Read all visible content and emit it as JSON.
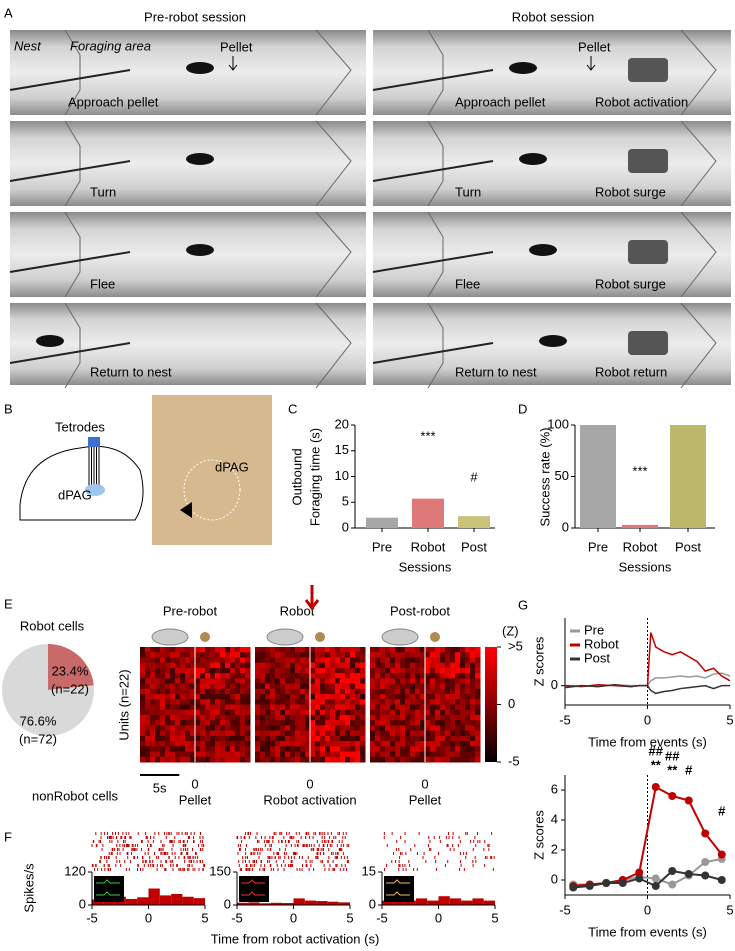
{
  "panel_a": {
    "label": "A",
    "titles": [
      "Pre-robot session",
      "Robot session"
    ],
    "nest": "Nest",
    "foraging_area": "Foraging area",
    "pellet": "Pellet",
    "left_captions": [
      "Approach pellet",
      "Turn",
      "Flee",
      "Return to nest"
    ],
    "right_captions": [
      "Approach pellet",
      "Turn",
      "Flee",
      "Return to nest"
    ],
    "robot_captions": [
      "Robot activation",
      "Robot surge",
      "Robot surge",
      "Robot return"
    ]
  },
  "panel_b": {
    "label": "B",
    "tetrodes": "Tetrodes",
    "region": "dPAG"
  },
  "panel_c": {
    "label": "C",
    "type": "bar",
    "y_label": [
      "Outbound",
      "Foraging time (s)"
    ],
    "x_label": "Sessions",
    "categories": [
      "Pre",
      "Robot",
      "Post"
    ],
    "values": [
      2,
      5.7,
      2.3
    ],
    "colors": [
      "#a6a6a6",
      "#e07a7a",
      "#c8c27a"
    ],
    "ylim": [
      0,
      20
    ],
    "yticks": [
      0,
      5,
      10,
      15,
      20
    ],
    "annotations": [
      "***",
      "#"
    ]
  },
  "panel_d": {
    "label": "D",
    "type": "bar",
    "y_label": "Success rate (%)",
    "x_label": "Sessions",
    "categories": [
      "Pre",
      "Robot",
      "Post"
    ],
    "values": [
      100,
      3,
      100
    ],
    "colors": [
      "#a6a6a6",
      "#e07a7a",
      "#bdb76b"
    ],
    "ylim": [
      0,
      100
    ],
    "yticks": [
      0,
      50,
      100
    ],
    "annotations": [
      "***"
    ]
  },
  "panel_e": {
    "label": "E",
    "conditions": [
      "Pre-robot",
      "Robot",
      "Post-robot"
    ],
    "pie": {
      "type": "pie",
      "slices": [
        {
          "name": "Robot cells",
          "value": 23.4,
          "value_label": "23.4%",
          "n_label": "(n=22)",
          "color": "#c96a6a"
        },
        {
          "name": "nonRobot cells",
          "value": 76.6,
          "value_label": "76.6%",
          "n_label": "(n=72)",
          "color": "#d9d9d9"
        }
      ]
    },
    "heatmap": {
      "y_label": "Units (n=22)",
      "xlim": [
        -7,
        7
      ],
      "event_tick": 0,
      "events": [
        "Pellet",
        "Robot activation",
        "Pellet"
      ],
      "scale_bar": {
        "value": 5,
        "label": "5s"
      },
      "colorbar_title": "(Z)",
      "clim": [
        -5,
        5
      ],
      "colorbar_ticks": [
        {
          "value": 5,
          "label": ">5"
        },
        0,
        -5
      ]
    }
  },
  "panel_f": {
    "label": "F",
    "y_label": "Spikes/s",
    "x_label": "Time from robot activation (s)",
    "xlim": [
      -5,
      5
    ],
    "xticks": [
      -5,
      0,
      5
    ],
    "bins": [
      -5,
      -4,
      -3,
      -2,
      -1,
      0,
      1,
      2,
      3,
      4,
      5
    ],
    "plots": [
      {
        "ylim": [
          0,
          120
        ],
        "yticks": [
          0,
          120
        ],
        "values": [
          20,
          25,
          30,
          22,
          28,
          60,
          35,
          40,
          30,
          25
        ]
      },
      {
        "ylim": [
          0,
          150
        ],
        "yticks": [
          0,
          150
        ],
        "values": [
          10,
          12,
          8,
          10,
          9,
          30,
          20,
          18,
          15,
          12
        ]
      },
      {
        "ylim": [
          0,
          15
        ],
        "yticks": [
          0,
          15
        ],
        "values": [
          2,
          3,
          2,
          3,
          2,
          4,
          3,
          2,
          3,
          2
        ]
      }
    ]
  },
  "panel_g": {
    "label": "G",
    "top": {
      "type": "line",
      "y_label": "Z scores",
      "x_label": "Time from events (s)",
      "xlim": [
        -5,
        5
      ],
      "xticks": [
        -5,
        0,
        5
      ],
      "ylim": [
        -2,
        7
      ],
      "yticks": [
        0
      ],
      "x": [
        -5,
        -4,
        -3,
        -2,
        -1,
        -0.5,
        0,
        0.2,
        0.5,
        1,
        1.5,
        2,
        2.5,
        3,
        3.5,
        4,
        4.5,
        5
      ],
      "series": [
        {
          "name": "Pre",
          "color": "#999999",
          "values": [
            0,
            0,
            -0.1,
            0.1,
            0,
            0,
            0,
            0.5,
            0.8,
            0.8,
            0.9,
            1,
            0.9,
            1,
            0.8,
            1.2,
            1.3,
            1
          ]
        },
        {
          "name": "Robot",
          "color": "#c00000",
          "values": [
            0,
            -0.1,
            0.1,
            0,
            -0.1,
            0,
            0,
            5.5,
            4,
            3.5,
            3.2,
            3.5,
            3,
            2.5,
            1.5,
            1.8,
            1,
            0.5
          ]
        },
        {
          "name": "Post",
          "color": "#333333",
          "values": [
            -0.2,
            0,
            -0.1,
            0.1,
            -0.1,
            0,
            0,
            -0.5,
            -0.8,
            -0.6,
            -0.5,
            -0.3,
            -0.2,
            -0.1,
            0,
            -0.3,
            0,
            0
          ]
        }
      ]
    },
    "bottom": {
      "type": "line",
      "y_label": "Z scores",
      "x_label": "Time from events (s)",
      "xlim": [
        -5,
        5
      ],
      "xticks": [
        -5,
        0,
        5
      ],
      "ylim": [
        -1,
        7
      ],
      "yticks": [
        0,
        2,
        4,
        6
      ],
      "x": [
        -4.5,
        -3.5,
        -2.5,
        -1.5,
        -0.5,
        0.5,
        1.5,
        2.5,
        3.5,
        4.5
      ],
      "series": [
        {
          "name": "Pre",
          "color": "#999999",
          "values": [
            -0.3,
            -0.3,
            -0.2,
            0,
            0.2,
            0.1,
            -0.3,
            0.3,
            1.2,
            1.4
          ]
        },
        {
          "name": "Robot",
          "color": "#c00000",
          "values": [
            -0.4,
            -0.3,
            -0.2,
            0,
            0.5,
            6.2,
            5.6,
            5.3,
            3.1,
            1.7
          ]
        },
        {
          "name": "Post",
          "color": "#333333",
          "values": [
            -0.5,
            -0.4,
            -0.2,
            -0.2,
            0.1,
            -0.4,
            0.6,
            0.4,
            0.3,
            0
          ]
        }
      ],
      "annotations": [
        "##",
        "**",
        "##",
        "**",
        "#",
        "#"
      ]
    }
  }
}
